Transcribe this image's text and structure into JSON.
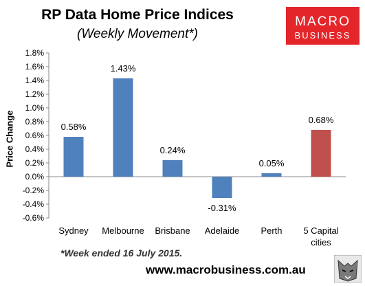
{
  "chart_data": {
    "type": "bar",
    "title": "RP Data Home Price Indices",
    "subtitle": "(Weekly Movement*)",
    "ylabel": "Price Change",
    "xlabel": "",
    "categories": [
      "Sydney",
      "Melbourne",
      "Brisbane",
      "Adelaide",
      "Perth",
      "5 Capital cities"
    ],
    "category_lines": [
      [
        "Sydney"
      ],
      [
        "Melbourne"
      ],
      [
        "Brisbane"
      ],
      [
        "Adelaide"
      ],
      [
        "Perth"
      ],
      [
        "5 Capital",
        "cities"
      ]
    ],
    "values": [
      0.58,
      1.43,
      0.24,
      -0.31,
      0.05,
      0.68
    ],
    "data_labels": [
      "0.58%",
      "1.43%",
      "0.24%",
      "-0.31%",
      "0.05%",
      "0.68%"
    ],
    "bar_colors": [
      "#4f81bd",
      "#4f81bd",
      "#4f81bd",
      "#4f81bd",
      "#4f81bd",
      "#c0504d"
    ],
    "ylim": [
      -0.6,
      1.8
    ],
    "yticks": [
      1.8,
      1.6,
      1.4,
      1.2,
      1.0,
      0.8,
      0.6,
      0.4,
      0.2,
      0.0,
      -0.2,
      -0.4,
      -0.6
    ],
    "ytick_labels": [
      "1.8%",
      "1.6%",
      "1.4%",
      "1.2%",
      "1.0%",
      "0.8%",
      "0.6%",
      "0.4%",
      "0.2%",
      "0.0%",
      "-0.2%",
      "-0.4%",
      "-0.6%"
    ],
    "grid": false,
    "legend": "none"
  },
  "footnote": "*Week ended 16 July 2015.",
  "website": "www.macrobusiness.com.au",
  "logo": {
    "line1": "MACRO",
    "line2": "BUSINESS",
    "color": "#e4262a"
  },
  "mascot_icon": "wolf-icon"
}
